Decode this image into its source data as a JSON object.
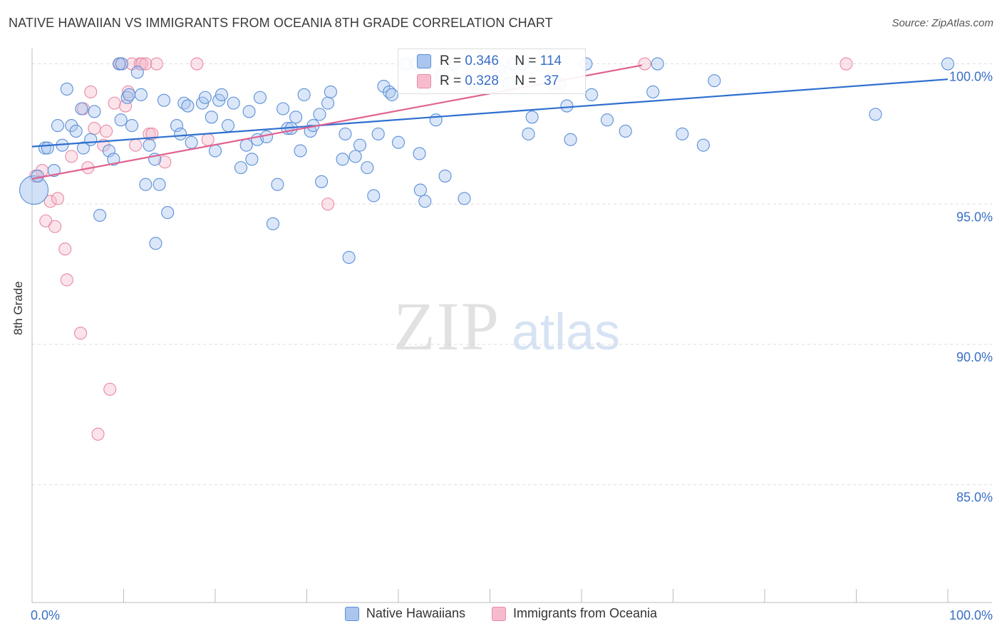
{
  "title": "NATIVE HAWAIIAN VS IMMIGRANTS FROM OCEANIA 8TH GRADE CORRELATION CHART",
  "source": "Source: ZipAtlas.com",
  "watermark": {
    "zip": "ZIP",
    "atlas": "atlas"
  },
  "colors": {
    "blue_fill": "#aac6ee",
    "blue_stroke": "#5b8fd8",
    "blue_line": "#2f6fcf",
    "pink_fill": "#f6bccd",
    "pink_stroke": "#e88aa7",
    "pink_line": "#e0628f",
    "tick_label": "#3a6fc6"
  },
  "stats": {
    "blue": {
      "r_label": "R =",
      "r_value": "0.346",
      "n_label": "N =",
      "n_value": "114"
    },
    "pink": {
      "r_label": "R =",
      "r_value": "0.328",
      "n_label": "N =",
      "n_value": "37"
    }
  },
  "legend": {
    "blue": "Native Hawaiians",
    "pink": "Immigrants from Oceania"
  },
  "chart_data": {
    "type": "scatter",
    "title": "NATIVE HAWAIIAN VS IMMIGRANTS FROM OCEANIA 8TH GRADE CORRELATION CHART",
    "xlabel": "",
    "ylabel": "8th Grade",
    "xlim": [
      0,
      100
    ],
    "ylim": [
      80.8,
      100.7
    ],
    "x_tick_labels": [
      "0.0%",
      "100.0%"
    ],
    "y_ticks": [
      85,
      90,
      95,
      100
    ],
    "y_tick_labels": [
      "85.0%",
      "90.0%",
      "95.0%",
      "100.0%"
    ],
    "series": [
      {
        "name": "Native Hawaiians",
        "color": "blue",
        "trend": {
          "x0": 0,
          "y0": 97.05,
          "x1": 100,
          "y1": 99.45
        },
        "points": [
          [
            0.2,
            95.5
          ],
          [
            0.6,
            96.0
          ],
          [
            1.4,
            97.0
          ],
          [
            1.7,
            97.0
          ],
          [
            2.4,
            96.2
          ],
          [
            2.8,
            97.8
          ],
          [
            3.3,
            97.1
          ],
          [
            3.8,
            99.1
          ],
          [
            4.3,
            97.8
          ],
          [
            4.8,
            97.6
          ],
          [
            5.4,
            98.4
          ],
          [
            5.6,
            97.0
          ],
          [
            6.4,
            97.3
          ],
          [
            6.8,
            98.3
          ],
          [
            7.4,
            94.6
          ],
          [
            8.4,
            96.9
          ],
          [
            8.9,
            96.6
          ],
          [
            9.5,
            100.0
          ],
          [
            9.8,
            100.0
          ],
          [
            9.7,
            98.0
          ],
          [
            10.4,
            98.8
          ],
          [
            10.6,
            98.9
          ],
          [
            10.9,
            97.8
          ],
          [
            11.5,
            99.7
          ],
          [
            11.9,
            98.9
          ],
          [
            12.4,
            95.7
          ],
          [
            12.8,
            97.1
          ],
          [
            13.4,
            96.6
          ],
          [
            13.5,
            93.6
          ],
          [
            13.9,
            95.7
          ],
          [
            14.4,
            98.7
          ],
          [
            14.8,
            94.7
          ],
          [
            15.8,
            97.8
          ],
          [
            16.2,
            97.5
          ],
          [
            16.6,
            98.6
          ],
          [
            17.0,
            98.5
          ],
          [
            17.4,
            97.2
          ],
          [
            18.6,
            98.6
          ],
          [
            18.9,
            98.8
          ],
          [
            19.6,
            98.1
          ],
          [
            20.0,
            96.9
          ],
          [
            20.4,
            98.7
          ],
          [
            20.7,
            98.9
          ],
          [
            21.4,
            97.8
          ],
          [
            22.0,
            98.6
          ],
          [
            22.8,
            96.3
          ],
          [
            23.4,
            97.1
          ],
          [
            23.7,
            98.3
          ],
          [
            24.0,
            96.6
          ],
          [
            24.6,
            97.3
          ],
          [
            24.9,
            98.8
          ],
          [
            25.6,
            97.4
          ],
          [
            26.3,
            94.3
          ],
          [
            26.8,
            95.7
          ],
          [
            27.4,
            98.4
          ],
          [
            27.9,
            97.7
          ],
          [
            28.3,
            97.7
          ],
          [
            28.8,
            98.1
          ],
          [
            29.3,
            96.9
          ],
          [
            29.7,
            98.9
          ],
          [
            30.4,
            97.6
          ],
          [
            30.7,
            97.8
          ],
          [
            31.4,
            98.2
          ],
          [
            31.6,
            95.8
          ],
          [
            32.3,
            98.6
          ],
          [
            32.6,
            99.0
          ],
          [
            33.9,
            96.6
          ],
          [
            34.2,
            97.5
          ],
          [
            34.6,
            93.1
          ],
          [
            35.3,
            96.7
          ],
          [
            35.8,
            97.1
          ],
          [
            36.6,
            96.3
          ],
          [
            37.3,
            95.3
          ],
          [
            37.8,
            97.5
          ],
          [
            38.4,
            99.2
          ],
          [
            39.0,
            99.0
          ],
          [
            39.3,
            98.9
          ],
          [
            40.0,
            97.2
          ],
          [
            40.8,
            100.0
          ],
          [
            42.0,
            100.0
          ],
          [
            42.3,
            96.8
          ],
          [
            42.4,
            95.5
          ],
          [
            42.9,
            95.1
          ],
          [
            44.1,
            98.0
          ],
          [
            44.7,
            99.6
          ],
          [
            45.1,
            96.0
          ],
          [
            46.1,
            100.0
          ],
          [
            47.2,
            95.2
          ],
          [
            48.3,
            99.3
          ],
          [
            51.0,
            99.8
          ],
          [
            52.1,
            99.3
          ],
          [
            52.5,
            100.0
          ],
          [
            53.6,
            100.0
          ],
          [
            54.2,
            97.5
          ],
          [
            54.6,
            98.1
          ],
          [
            57.0,
            99.3
          ],
          [
            57.6,
            99.3
          ],
          [
            58.4,
            98.5
          ],
          [
            58.8,
            97.3
          ],
          [
            60.5,
            100.0
          ],
          [
            61.1,
            98.9
          ],
          [
            62.8,
            98.0
          ],
          [
            64.8,
            97.6
          ],
          [
            67.8,
            99.0
          ],
          [
            68.3,
            100.0
          ],
          [
            71.0,
            97.5
          ],
          [
            73.3,
            97.1
          ],
          [
            74.5,
            99.4
          ],
          [
            92.1,
            98.2
          ],
          [
            100.0,
            100.0
          ]
        ]
      },
      {
        "name": "Immigrants from Oceania",
        "color": "pink",
        "trend": {
          "x0": 0,
          "y0": 95.9,
          "x1": 66.6,
          "y1": 99.95
        },
        "points": [
          [
            0.4,
            96.0
          ],
          [
            1.1,
            96.2
          ],
          [
            1.5,
            94.4
          ],
          [
            2.0,
            95.1
          ],
          [
            2.5,
            94.2
          ],
          [
            2.8,
            95.2
          ],
          [
            3.6,
            93.4
          ],
          [
            3.8,
            92.3
          ],
          [
            4.3,
            96.7
          ],
          [
            5.3,
            90.4
          ],
          [
            5.6,
            98.4
          ],
          [
            6.1,
            96.3
          ],
          [
            6.4,
            99.0
          ],
          [
            6.8,
            97.7
          ],
          [
            7.2,
            86.8
          ],
          [
            7.8,
            97.1
          ],
          [
            8.1,
            97.6
          ],
          [
            8.5,
            88.4
          ],
          [
            9.0,
            98.6
          ],
          [
            9.6,
            100.0
          ],
          [
            10.2,
            98.5
          ],
          [
            10.5,
            99.0
          ],
          [
            10.9,
            100.0
          ],
          [
            11.3,
            97.1
          ],
          [
            11.8,
            100.0
          ],
          [
            12.0,
            100.0
          ],
          [
            12.4,
            100.0
          ],
          [
            12.8,
            97.5
          ],
          [
            13.1,
            97.5
          ],
          [
            13.6,
            100.0
          ],
          [
            14.5,
            96.5
          ],
          [
            18.0,
            100.0
          ],
          [
            19.2,
            97.3
          ],
          [
            32.3,
            95.0
          ],
          [
            47.1,
            99.2
          ],
          [
            66.9,
            100.0
          ],
          [
            88.9,
            100.0
          ]
        ]
      }
    ]
  }
}
